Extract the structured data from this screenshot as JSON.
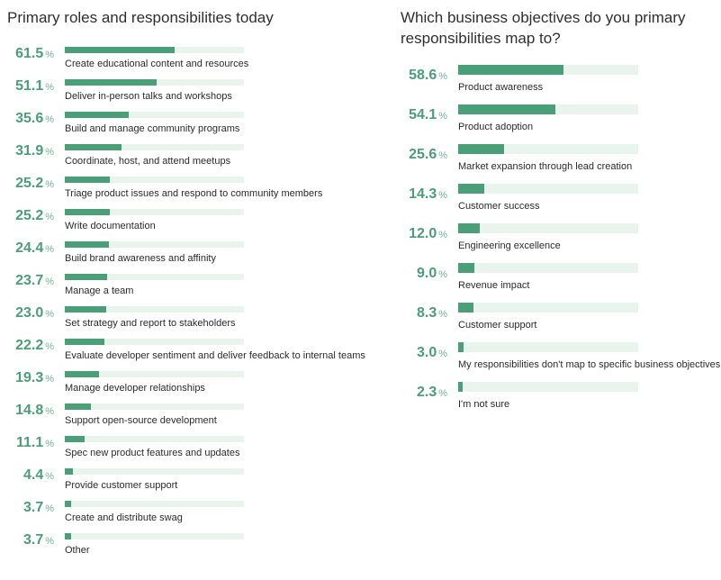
{
  "chart_data": [
    {
      "type": "bar",
      "title": "Primary roles and responsibilities today",
      "unit": "%",
      "xlim": [
        0,
        100
      ],
      "colors": {
        "bar": "#4a9e78",
        "track": "#eaf4ee",
        "value_text": "#4a9e78"
      },
      "categories": [
        "Create educational content and resources",
        "Deliver in-person talks and workshops",
        "Build and manage community programs",
        "Coordinate, host, and attend meetups",
        "Triage product issues and respond to community members",
        "Write documentation",
        "Build brand awareness and affinity",
        "Manage a team",
        "Set strategy and report to stakeholders",
        "Evaluate developer sentiment and deliver feedback to internal teams",
        "Manage developer relationships",
        "Support open-source development",
        "Spec new product features and updates",
        "Provide customer support",
        "Create and distribute swag",
        "Other"
      ],
      "values": [
        61.5,
        51.1,
        35.6,
        31.9,
        25.2,
        25.2,
        24.4,
        23.7,
        23.0,
        22.2,
        19.3,
        14.8,
        11.1,
        4.4,
        3.7,
        3.7
      ],
      "value_labels": [
        "61.5",
        "51.1",
        "35.6",
        "31.9",
        "25.2",
        "25.2",
        "24.4",
        "23.7",
        "23.0",
        "22.2",
        "19.3",
        "14.8",
        "11.1",
        "4.4",
        "3.7",
        "3.7"
      ]
    },
    {
      "type": "bar",
      "title": "Which business objectives do you primary responsibilities map to?",
      "unit": "%",
      "xlim": [
        0,
        100
      ],
      "colors": {
        "bar": "#4a9e78",
        "track": "#eaf4ee",
        "value_text": "#4a9e78"
      },
      "categories": [
        "Product awareness",
        "Product adoption",
        "Market expansion through lead creation",
        "Customer success",
        "Engineering excellence",
        "Revenue impact",
        "Customer support",
        "My responsibilities don't map to specific business objectives",
        "I'm not sure"
      ],
      "values": [
        58.6,
        54.1,
        25.6,
        14.3,
        12.0,
        9.0,
        8.3,
        3.0,
        2.3
      ],
      "value_labels": [
        "58.6",
        "54.1",
        "25.6",
        "14.3",
        "12.0",
        "9.0",
        "8.3",
        "3.0",
        "2.3"
      ]
    }
  ]
}
